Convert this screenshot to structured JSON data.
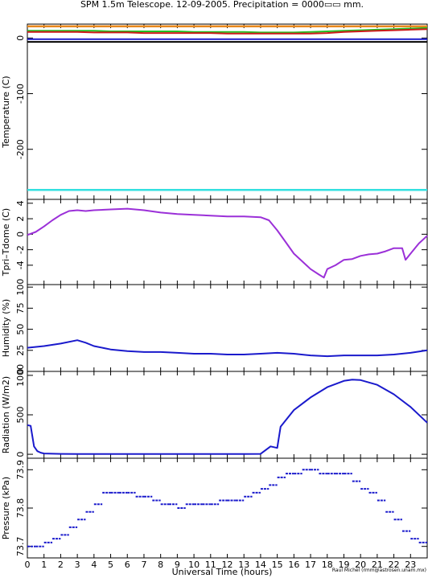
{
  "title": "SPM 1.5m Telescope. 12-09-2005. Precipitation = 0000▭▭ mm.",
  "credit": "Raul Michel (rmm@astrosen.unam.mx)",
  "x_axis": {
    "label": "Universal Time (hours)",
    "range": [
      0,
      24
    ],
    "ticks": [
      0,
      1,
      2,
      3,
      4,
      5,
      6,
      7,
      8,
      9,
      10,
      11,
      12,
      13,
      14,
      15,
      16,
      17,
      18,
      19,
      20,
      21,
      22,
      23
    ]
  },
  "colors": {
    "orange": "#e8881c",
    "green": "#22c022",
    "red": "#cc1a1a",
    "black": "#000000",
    "blue": "#1a1acc",
    "cyan": "#33e0e0",
    "purple": "#9b30d8"
  },
  "chart_data": [
    {
      "type": "line",
      "ylabel": "Temperature (C)",
      "ylim": [
        -290,
        25
      ],
      "yticks": [
        0,
        -100,
        -200
      ],
      "x": [
        0,
        1,
        2,
        3,
        4,
        5,
        6,
        7,
        8,
        9,
        10,
        11,
        12,
        13,
        14,
        15,
        16,
        17,
        18,
        19,
        20,
        21,
        22,
        23,
        24
      ],
      "series": [
        {
          "color": "orange",
          "values": [
            21,
            21,
            21,
            21,
            21,
            21,
            21,
            21,
            21,
            21,
            21,
            21,
            21,
            21,
            21,
            21,
            21,
            21,
            21,
            21,
            21,
            21,
            21,
            21,
            21
          ]
        },
        {
          "color": "green",
          "values": [
            13,
            13,
            13,
            13,
            13,
            12,
            12,
            12,
            12,
            12,
            11,
            11,
            11,
            11,
            10,
            10,
            10,
            11,
            12,
            13,
            14,
            15,
            16,
            17,
            18
          ]
        },
        {
          "color": "red",
          "values": [
            11,
            11,
            11,
            11,
            10,
            10,
            10,
            9,
            9,
            9,
            9,
            9,
            8,
            8,
            8,
            8,
            8,
            8,
            9,
            11,
            12,
            13,
            14,
            15,
            16
          ]
        },
        {
          "color": "black",
          "values": [
            -7,
            -7,
            -7,
            -7,
            -7,
            -7,
            -7,
            -7,
            -7,
            -7,
            -7,
            -7,
            -7,
            -7,
            -7,
            -7,
            -7,
            -7,
            -7,
            -7,
            -7,
            -7,
            -7,
            -7,
            -7
          ]
        },
        {
          "color": "blue",
          "values": [
            -2,
            -2,
            -2,
            -2,
            -2,
            -2,
            -2,
            -2,
            -2,
            -2,
            -2,
            -2,
            -2,
            -2,
            -2,
            -2,
            -2,
            -2,
            -2,
            -2,
            -2,
            -2,
            -2,
            -2,
            -2
          ]
        },
        {
          "color": "cyan",
          "values": [
            -273,
            -273,
            -273,
            -273,
            -273,
            -273,
            -273,
            -273,
            -273,
            -273,
            -273,
            -273,
            -273,
            -273,
            -273,
            -273,
            -273,
            -273,
            -273,
            -273,
            -273,
            -273,
            -273,
            -273,
            -273
          ]
        }
      ]
    },
    {
      "type": "line",
      "ylabel": "Tpri–Tdome (C)",
      "ylim": [
        -6.5,
        4.5
      ],
      "yticks": [
        4,
        2,
        0,
        -2,
        -4
      ],
      "x": [
        0,
        0.5,
        1,
        1.5,
        2,
        2.5,
        3,
        3.5,
        4,
        5,
        6,
        7,
        8,
        9,
        10,
        11,
        12,
        13,
        14,
        14.5,
        15,
        15.5,
        16,
        16.5,
        17,
        17.5,
        17.8,
        18,
        18.5,
        19,
        19.5,
        20,
        20.5,
        21,
        21.5,
        22,
        22.5,
        22.7,
        23,
        23.5,
        24
      ],
      "series": [
        {
          "color": "purple",
          "values": [
            -0.1,
            0.3,
            1.0,
            1.8,
            2.5,
            3.0,
            3.1,
            3.0,
            3.1,
            3.2,
            3.3,
            3.1,
            2.8,
            2.6,
            2.5,
            2.4,
            2.3,
            2.3,
            2.2,
            1.8,
            0.5,
            -1.0,
            -2.5,
            -3.5,
            -4.5,
            -5.2,
            -5.6,
            -4.5,
            -4.0,
            -3.3,
            -3.2,
            -2.8,
            -2.6,
            -2.5,
            -2.2,
            -1.8,
            -1.8,
            -3.3,
            -2.5,
            -1.2,
            -0.2
          ]
        }
      ]
    },
    {
      "type": "line",
      "ylabel": "Humidity (%)",
      "ylim": [
        0,
        103
      ],
      "yticks": [
        100,
        75,
        50,
        25,
        0
      ],
      "x": [
        0,
        1,
        2,
        3,
        3.5,
        4,
        5,
        6,
        7,
        8,
        9,
        10,
        11,
        12,
        13,
        14,
        15,
        16,
        17,
        18,
        19,
        20,
        21,
        22,
        23,
        24
      ],
      "series": [
        {
          "color": "blue",
          "values": [
            28,
            30,
            33,
            37,
            34,
            30,
            26,
            24,
            23,
            23,
            22,
            21,
            21,
            20,
            20,
            21,
            22,
            21,
            19,
            18,
            19,
            19,
            19,
            20,
            22,
            25
          ]
        }
      ]
    },
    {
      "type": "line",
      "ylabel": "Radiation (W/m2)",
      "ylim": [
        -50,
        1050
      ],
      "yticks": [
        1000,
        500,
        0
      ],
      "x": [
        0,
        0.2,
        0.4,
        0.6,
        0.8,
        1,
        2,
        3,
        4,
        5,
        6,
        7,
        8,
        9,
        10,
        11,
        12,
        13,
        14,
        14.6,
        15,
        15.2,
        16,
        17,
        18,
        19,
        19.5,
        20,
        21,
        22,
        23,
        24
      ],
      "series": [
        {
          "color": "blue",
          "values": [
            370,
            360,
            100,
            40,
            20,
            10,
            5,
            3,
            3,
            3,
            3,
            3,
            3,
            3,
            3,
            3,
            3,
            3,
            5,
            100,
            80,
            350,
            560,
            720,
            850,
            930,
            945,
            940,
            880,
            760,
            600,
            400
          ]
        }
      ]
    },
    {
      "type": "scatter",
      "ylabel": "Pressure (kPa)",
      "ylim": [
        73.67,
        73.93
      ],
      "yticks": [
        73.9,
        73.8,
        73.7
      ],
      "x": [
        0,
        0.5,
        1,
        1.5,
        2,
        2.5,
        3,
        3.5,
        4,
        4.5,
        5,
        5.5,
        6,
        6.5,
        7,
        7.5,
        8,
        8.5,
        9,
        9.5,
        10,
        10.5,
        11,
        11.5,
        12,
        12.5,
        13,
        13.5,
        14,
        14.5,
        15,
        15.5,
        16,
        16.5,
        17,
        17.5,
        18,
        18.5,
        19,
        19.5,
        20,
        20.5,
        21,
        21.5,
        22,
        22.5,
        23,
        23.5
      ],
      "series": [
        {
          "color": "blue",
          "values": [
            73.7,
            73.7,
            73.71,
            73.72,
            73.73,
            73.75,
            73.77,
            73.79,
            73.81,
            73.84,
            73.84,
            73.84,
            73.84,
            73.83,
            73.83,
            73.82,
            73.81,
            73.81,
            73.8,
            73.81,
            73.81,
            73.81,
            73.81,
            73.82,
            73.82,
            73.82,
            73.83,
            73.84,
            73.85,
            73.86,
            73.88,
            73.89,
            73.89,
            73.9,
            73.9,
            73.89,
            73.89,
            73.89,
            73.89,
            73.87,
            73.85,
            73.84,
            73.82,
            73.79,
            73.77,
            73.74,
            73.72,
            73.71
          ]
        }
      ]
    }
  ]
}
